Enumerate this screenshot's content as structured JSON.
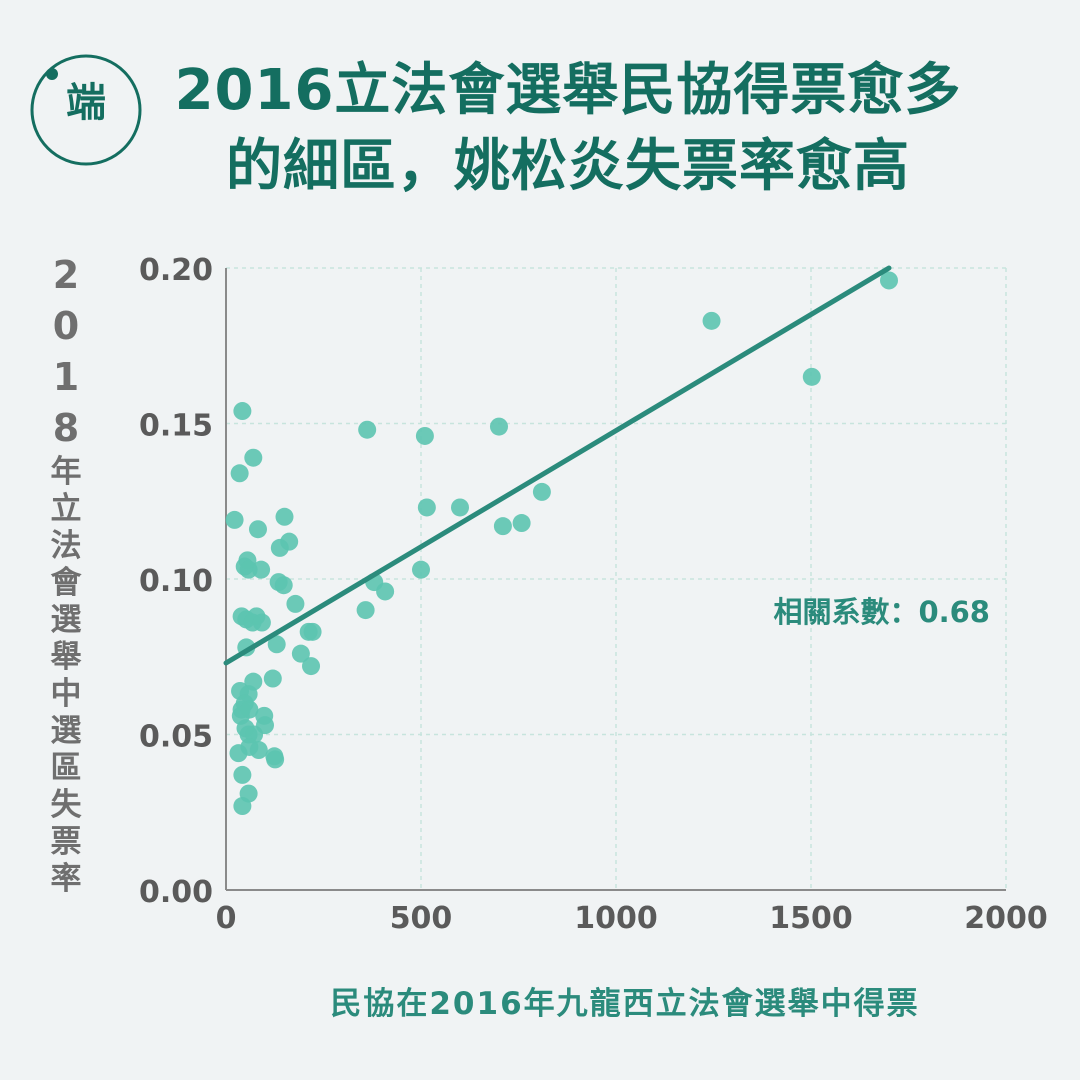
{
  "brand": {
    "logo_text": "端",
    "color": "#146e60"
  },
  "title": {
    "line1": "2016立法會選舉民協得票愈多",
    "line2": "的細區，姚松炎失票率愈高"
  },
  "chart_data": {
    "type": "scatter",
    "title": "2016立法會選舉民協得票愈多的細區，姚松炎失票率愈高",
    "xlabel": "民協在2016年九龍西立法會選舉中得票",
    "ylabel_num": "2018",
    "ylabel_text": "年立法會選舉中選區失票率",
    "xlim": [
      0,
      2000
    ],
    "ylim": [
      0,
      0.2
    ],
    "xticks": [
      "0",
      "500",
      "1000",
      "1500",
      "2000"
    ],
    "yticks": [
      "0.00",
      "0.05",
      "0.10",
      "0.15",
      "0.20"
    ],
    "grid": true,
    "annotation": "相關系數：0.68",
    "correlation": 0.68,
    "trendline": {
      "x": [
        0,
        1700
      ],
      "y": [
        0.073,
        0.2
      ]
    },
    "colors": {
      "point": "#5cc4b0",
      "line": "#2b8b7c",
      "grid": "#c7e4dd",
      "axis": "#8a8a8a",
      "tick": "#5a5a5a"
    },
    "points": [
      [
        42,
        0.154
      ],
      [
        70,
        0.139
      ],
      [
        35,
        0.134
      ],
      [
        22,
        0.119
      ],
      [
        150,
        0.12
      ],
      [
        82,
        0.116
      ],
      [
        162,
        0.112
      ],
      [
        138,
        0.11
      ],
      [
        55,
        0.106
      ],
      [
        48,
        0.104
      ],
      [
        58,
        0.103
      ],
      [
        90,
        0.103
      ],
      [
        135,
        0.099
      ],
      [
        148,
        0.098
      ],
      [
        178,
        0.092
      ],
      [
        40,
        0.088
      ],
      [
        78,
        0.088
      ],
      [
        52,
        0.087
      ],
      [
        68,
        0.086
      ],
      [
        92,
        0.086
      ],
      [
        212,
        0.083
      ],
      [
        222,
        0.083
      ],
      [
        130,
        0.079
      ],
      [
        52,
        0.078
      ],
      [
        192,
        0.076
      ],
      [
        218,
        0.072
      ],
      [
        120,
        0.068
      ],
      [
        70,
        0.067
      ],
      [
        36,
        0.064
      ],
      [
        58,
        0.063
      ],
      [
        48,
        0.06
      ],
      [
        40,
        0.058
      ],
      [
        60,
        0.058
      ],
      [
        38,
        0.056
      ],
      [
        98,
        0.056
      ],
      [
        100,
        0.053
      ],
      [
        50,
        0.052
      ],
      [
        58,
        0.05
      ],
      [
        72,
        0.05
      ],
      [
        60,
        0.046
      ],
      [
        84,
        0.045
      ],
      [
        32,
        0.044
      ],
      [
        124,
        0.043
      ],
      [
        126,
        0.042
      ],
      [
        42,
        0.037
      ],
      [
        58,
        0.031
      ],
      [
        42,
        0.027
      ],
      [
        362,
        0.148
      ],
      [
        510,
        0.146
      ],
      [
        700,
        0.149
      ],
      [
        515,
        0.123
      ],
      [
        600,
        0.123
      ],
      [
        810,
        0.128
      ],
      [
        710,
        0.117
      ],
      [
        758,
        0.118
      ],
      [
        380,
        0.099
      ],
      [
        408,
        0.096
      ],
      [
        500,
        0.103
      ],
      [
        358,
        0.09
      ],
      [
        1245,
        0.183
      ],
      [
        1700,
        0.196
      ],
      [
        1502,
        0.165
      ]
    ]
  }
}
